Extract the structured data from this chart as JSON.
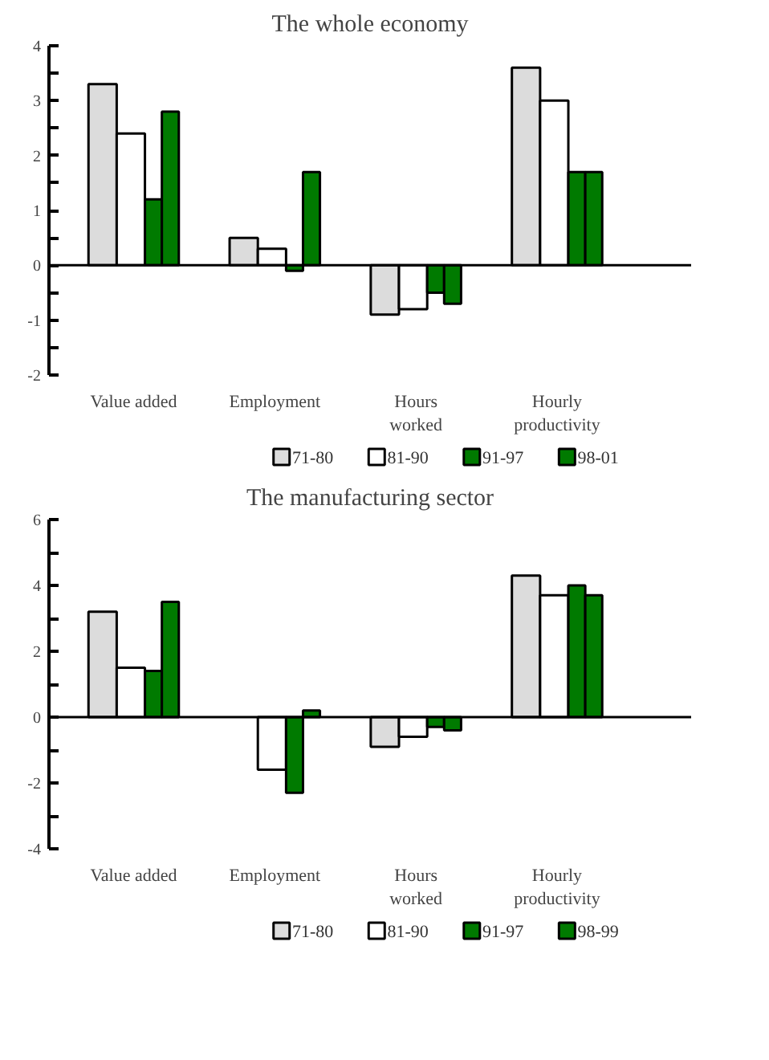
{
  "chart_data": [
    {
      "type": "bar",
      "title": "The whole economy",
      "categories": [
        "Value added",
        "Employment",
        "Hours\nworked",
        "Hourly\nproductivity"
      ],
      "ylim": [
        -2,
        4
      ],
      "yticks": [
        -2,
        {
          "value": -1.5,
          "label": null
        },
        -1,
        {
          "value": -0.5,
          "label": null
        },
        0,
        {
          "value": 0.5,
          "label": null
        },
        1,
        {
          "value": 1.5,
          "label": null
        },
        2,
        {
          "value": 2.5,
          "label": null
        },
        3,
        {
          "value": 3.5,
          "label": null
        },
        4
      ],
      "legend": "bottom",
      "series": [
        {
          "name": "71-80",
          "color": "#dcdcdc",
          "values": [
            3.3,
            0.5,
            -0.9,
            3.6
          ]
        },
        {
          "name": "81-90",
          "color": "#ffffff",
          "values": [
            2.4,
            0.3,
            -0.8,
            3.0
          ]
        },
        {
          "name": "91-97",
          "color": "#007a00",
          "values": [
            1.2,
            -0.1,
            -0.5,
            1.7
          ]
        },
        {
          "name": "98-01",
          "color": "#007a00",
          "values": [
            2.8,
            1.7,
            -0.7,
            1.7
          ]
        }
      ]
    },
    {
      "type": "bar",
      "title": "The manufacturing sector",
      "categories": [
        "Value added",
        "Employment",
        "Hours\nworked",
        "Hourly\nproductivity"
      ],
      "ylim": [
        -4,
        6
      ],
      "yticks": [
        -4,
        {
          "value": -3,
          "label": null
        },
        -2,
        {
          "value": -1,
          "label": null
        },
        0,
        {
          "value": 1,
          "label": null
        },
        2,
        {
          "value": 3,
          "label": null
        },
        4,
        {
          "value": 5,
          "label": null
        },
        6
      ],
      "legend": "bottom",
      "series": [
        {
          "name": "71-80",
          "color": "#dcdcdc",
          "values": [
            3.2,
            null,
            -0.9,
            4.3
          ]
        },
        {
          "name": "81-90",
          "color": "#ffffff",
          "values": [
            1.5,
            -1.6,
            -0.6,
            3.7
          ]
        },
        {
          "name": "91-97",
          "color": "#007a00",
          "values": [
            1.4,
            -2.3,
            -0.3,
            4.0
          ]
        },
        {
          "name": "98-99",
          "color": "#007a00",
          "values": [
            3.5,
            0.2,
            -0.4,
            3.7
          ]
        }
      ]
    }
  ]
}
